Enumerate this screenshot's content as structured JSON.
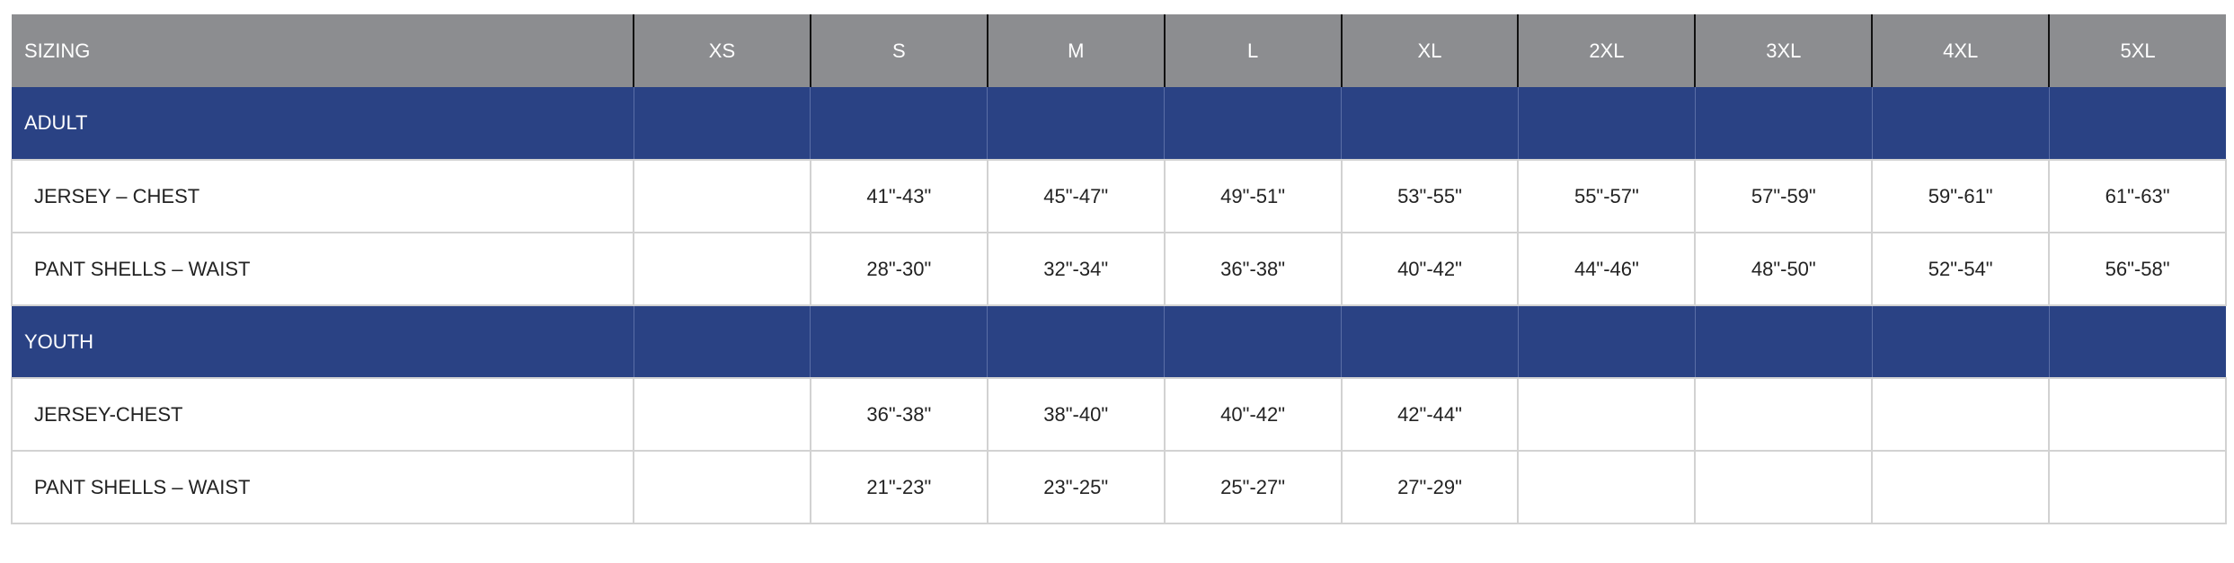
{
  "table": {
    "header": [
      "SIZING",
      "XS",
      "S",
      "M",
      "L",
      "XL",
      "2XL",
      "3XL",
      "4XL",
      "5XL"
    ],
    "groups": [
      {
        "label": "ADULT",
        "rows": [
          {
            "label": "JERSEY – CHEST",
            "values": [
              "",
              "41\"-43\"",
              "45\"-47\"",
              "49\"-51\"",
              "53\"-55\"",
              "55\"-57\"",
              "57\"-59\"",
              "59\"-61\"",
              "61\"-63\""
            ]
          },
          {
            "label": "PANT SHELLS – WAIST",
            "values": [
              "",
              "28\"-30\"",
              "32\"-34\"",
              "36\"-38\"",
              "40\"-42\"",
              "44\"-46\"",
              "48\"-50\"",
              "52\"-54\"",
              "56\"-58\""
            ]
          }
        ]
      },
      {
        "label": "YOUTH",
        "rows": [
          {
            "label": "JERSEY-CHEST",
            "values": [
              "",
              "36\"-38\"",
              "38\"-40\"",
              "40\"-42\"",
              "42\"-44\"",
              "",
              "",
              "",
              ""
            ]
          },
          {
            "label": "PANT SHELLS – WAIST",
            "values": [
              "",
              "21\"-23\"",
              "23\"-25\"",
              "25\"-27\"",
              "27\"-29\"",
              "",
              "",
              "",
              ""
            ]
          }
        ]
      }
    ]
  },
  "colors": {
    "header_bg": "#8c8d90",
    "group_bg": "#2a4284",
    "border": "#d2d2d2"
  }
}
